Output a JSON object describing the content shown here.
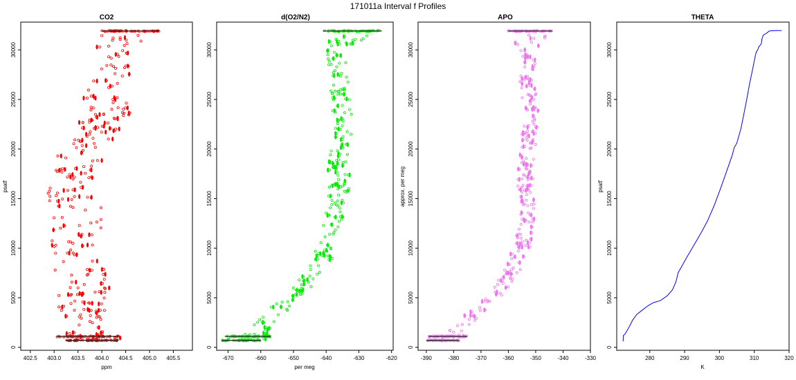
{
  "figure": {
    "title": "171011a   Interval f Profiles"
  },
  "chart_data": [
    {
      "type": "scatter",
      "title": "CO2",
      "xlabel": "ppm",
      "ylabel": "psatf",
      "xlim": [
        402.3,
        405.9
      ],
      "ylim": [
        -300,
        32800
      ],
      "xticks": [
        "402.5",
        "403.0",
        "403.5",
        "404.0",
        "404.5",
        "405.0",
        "405.5"
      ],
      "yticks": [
        "0",
        "5000",
        "10000",
        "15000",
        "20000",
        "25000",
        "30000"
      ],
      "color": "#ff0000",
      "marker": "open-circle-and-filled-dash",
      "grid": false,
      "profile": {
        "y": [
          700,
          1100,
          2000,
          4000,
          6000,
          8000,
          10000,
          12000,
          14000,
          16000,
          18000,
          20000,
          22000,
          24000,
          26000,
          28000,
          30000,
          31900
        ],
        "x": [
          403.8,
          403.7,
          403.7,
          403.6,
          403.6,
          403.5,
          403.4,
          403.5,
          403.5,
          403.3,
          403.4,
          403.6,
          403.9,
          404.2,
          404.0,
          404.3,
          404.2,
          404.6
        ],
        "spread": [
          0.55,
          0.65,
          0.45,
          0.5,
          0.55,
          0.55,
          0.6,
          0.5,
          0.5,
          0.55,
          0.5,
          0.5,
          0.45,
          0.45,
          0.4,
          0.35,
          0.3,
          0.6
        ]
      }
    },
    {
      "type": "scatter",
      "title": "d(O2/N2)",
      "xlabel": "per meg",
      "ylabel": "",
      "xlim": [
        -673.5,
        -619.5
      ],
      "ylim": [
        -300,
        32800
      ],
      "xticks": [
        "-670",
        "-660",
        "-650",
        "-640",
        "-630",
        "-620"
      ],
      "yticks": [
        "0",
        "5000",
        "10000",
        "15000",
        "20000",
        "25000",
        "30000"
      ],
      "color": "#00ee00",
      "marker": "open-circle-and-filled-dash",
      "grid": false,
      "profile": {
        "y": [
          700,
          1100,
          2000,
          3000,
          4000,
          5000,
          6000,
          7000,
          8000,
          9000,
          10000,
          12000,
          14000,
          16000,
          18000,
          20000,
          22000,
          24000,
          26000,
          28000,
          30000,
          31900
        ],
        "x": [
          -666,
          -664,
          -660,
          -657,
          -654,
          -650,
          -647,
          -645,
          -643,
          -641,
          -640,
          -638,
          -637,
          -636,
          -636,
          -636,
          -635,
          -635,
          -636,
          -636,
          -637,
          -632
        ],
        "spread": [
          6,
          7,
          3,
          3,
          3,
          3,
          3,
          3,
          3,
          3,
          3,
          3,
          3,
          3,
          3,
          3,
          3,
          3,
          3,
          3,
          3,
          9
        ]
      }
    },
    {
      "type": "scatter",
      "title": "APO",
      "xlabel": "",
      "ylabel": "approx. per meg",
      "xlim": [
        -393,
        -330
      ],
      "ylim": [
        -300,
        32800
      ],
      "xticks": [
        "-390",
        "-380",
        "-370",
        "-360",
        "-350",
        "-340",
        "-330"
      ],
      "yticks": [
        "0",
        "5000",
        "10000",
        "15000",
        "20000",
        "25000",
        "30000"
      ],
      "color": "#ee77ee",
      "marker": "open-circle-and-filled-dash",
      "grid": false,
      "profile": {
        "y": [
          700,
          1100,
          2000,
          3000,
          4000,
          5000,
          6000,
          7000,
          8000,
          9000,
          10000,
          12000,
          14000,
          16000,
          18000,
          20000,
          22000,
          24000,
          26000,
          28000,
          30000,
          31900
        ],
        "x": [
          -384,
          -382,
          -378,
          -374,
          -370,
          -366,
          -363,
          -360,
          -358,
          -356,
          -355,
          -354,
          -353,
          -354,
          -354,
          -353,
          -352,
          -352,
          -353,
          -353,
          -353,
          -352
        ],
        "spread": [
          6,
          7,
          3,
          3,
          3,
          3,
          3,
          3,
          3,
          3,
          3,
          3,
          3,
          3,
          3,
          3,
          3,
          3,
          3,
          3,
          3,
          8
        ]
      }
    },
    {
      "type": "line",
      "title": "THETA",
      "xlabel": "K",
      "ylabel": "psatf",
      "xlim": [
        270.5,
        320
      ],
      "ylim": [
        -300,
        32800
      ],
      "xticks": [
        "280",
        "290",
        "300",
        "310",
        "320"
      ],
      "yticks": [
        "0",
        "5000",
        "10000",
        "15000",
        "20000",
        "25000",
        "30000"
      ],
      "color": "#0000ff",
      "grid": false,
      "series": [
        {
          "x": [
            272.3,
            272.4,
            272.4,
            272.8,
            273.5,
            274.3,
            275.0,
            276.2,
            278.0,
            279.5,
            281.0,
            283.0,
            285.0,
            286.5,
            287.5,
            288.0,
            288.1,
            288.6,
            290.5,
            292.5,
            294.5,
            296.5,
            298.5,
            300.3,
            302.0,
            303.7,
            304.2,
            305.0,
            306.2,
            307.0,
            307.9,
            308.6,
            309.5,
            310.3,
            310.6,
            311.0,
            311.3,
            312.0,
            312.2,
            312.6,
            313.6,
            314.3,
            316.0,
            317.9
          ],
          "y": [
            600,
            900,
            1200,
            1300,
            1700,
            2200,
            2700,
            3300,
            3800,
            4200,
            4500,
            4700,
            5200,
            5800,
            6600,
            7300,
            7500,
            7800,
            9000,
            10200,
            11400,
            12700,
            14300,
            16000,
            17700,
            19400,
            20100,
            20600,
            22100,
            23500,
            25100,
            26500,
            28000,
            29400,
            29800,
            30000,
            30300,
            30600,
            31100,
            31500,
            31700,
            31900,
            31950,
            31950
          ]
        }
      ]
    }
  ]
}
